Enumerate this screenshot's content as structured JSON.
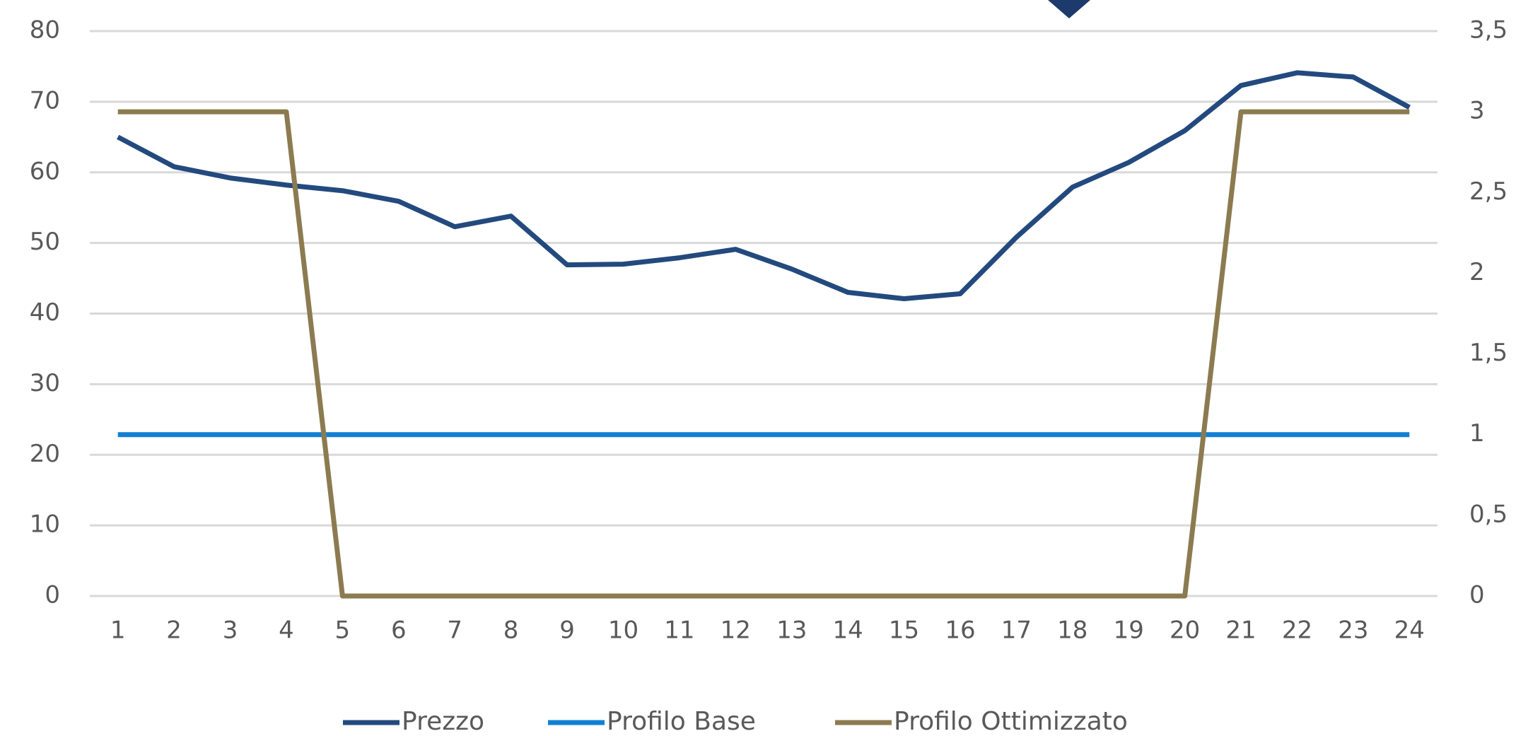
{
  "chart_data": {
    "type": "line",
    "categories": [
      "1",
      "2",
      "3",
      "4",
      "5",
      "6",
      "7",
      "8",
      "9",
      "10",
      "11",
      "12",
      "13",
      "14",
      "15",
      "16",
      "17",
      "18",
      "19",
      "20",
      "21",
      "22",
      "23",
      "24"
    ],
    "ylim": [
      0,
      80
    ],
    "yticks": [
      0,
      10,
      20,
      30,
      40,
      50,
      60,
      70,
      80
    ],
    "y2lim": [
      0,
      3.5
    ],
    "y2ticks": [
      0,
      {
        "value": 0.5,
        "label": "0,5"
      },
      1,
      {
        "value": 1.5,
        "label": "1,5"
      },
      2,
      {
        "value": 2.5,
        "label": "2,5"
      },
      3,
      {
        "value": 3.5,
        "label": "3,5"
      }
    ],
    "grid": true,
    "legend": "bottom",
    "series": [
      {
        "name": "Prezzo",
        "color": "#234a7e",
        "values": [
          65,
          60.8,
          59.2,
          58.2,
          57.4,
          55.9,
          52.3,
          53.8,
          46.9,
          47,
          47.9,
          49.1,
          46.3,
          43,
          42.1,
          42.8,
          50.8,
          57.9,
          61.4,
          65.9,
          72.3,
          74.1,
          73.5,
          69.2
        ]
      },
      {
        "name": "Profilo Base",
        "color": "#1180d4",
        "axis": "y2",
        "values": [
          1,
          1,
          1,
          1,
          1,
          1,
          1,
          1,
          1,
          1,
          1,
          1,
          1,
          1,
          1,
          1,
          1,
          1,
          1,
          1,
          1,
          1,
          1,
          1
        ]
      },
      {
        "name": "Profilo Ottimizzato",
        "color": "#8c7b50",
        "axis": "y2",
        "values": [
          3,
          3,
          3,
          3,
          0,
          0,
          0,
          0,
          0,
          0,
          0,
          0,
          0,
          0,
          0,
          0,
          0,
          0,
          0,
          0,
          3,
          3,
          3,
          3
        ]
      }
    ]
  }
}
